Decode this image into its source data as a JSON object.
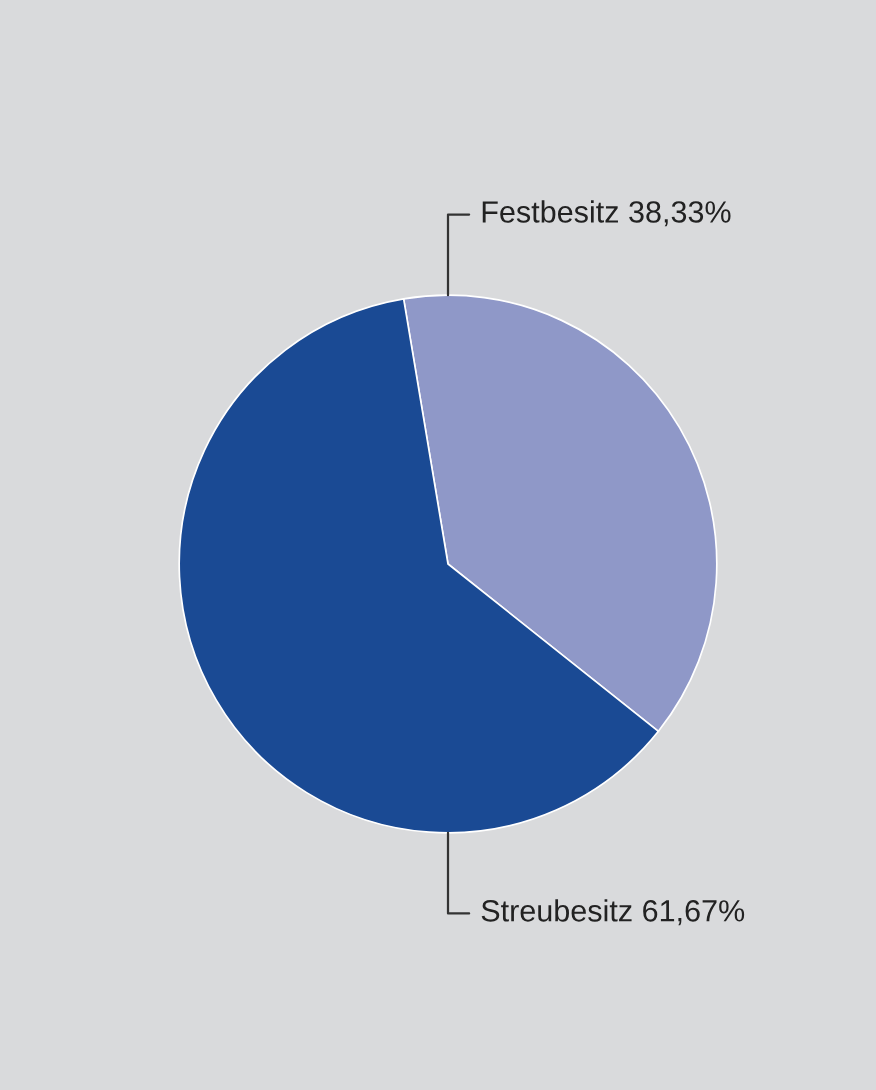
{
  "chart_data": {
    "type": "pie",
    "categories": [
      "Festbesitz",
      "Streubesitz"
    ],
    "values": [
      38.33,
      61.67
    ],
    "value_labels": [
      "38,33%",
      "61,67%"
    ],
    "colors": [
      "#8f98c8",
      "#1a4a94"
    ]
  }
}
